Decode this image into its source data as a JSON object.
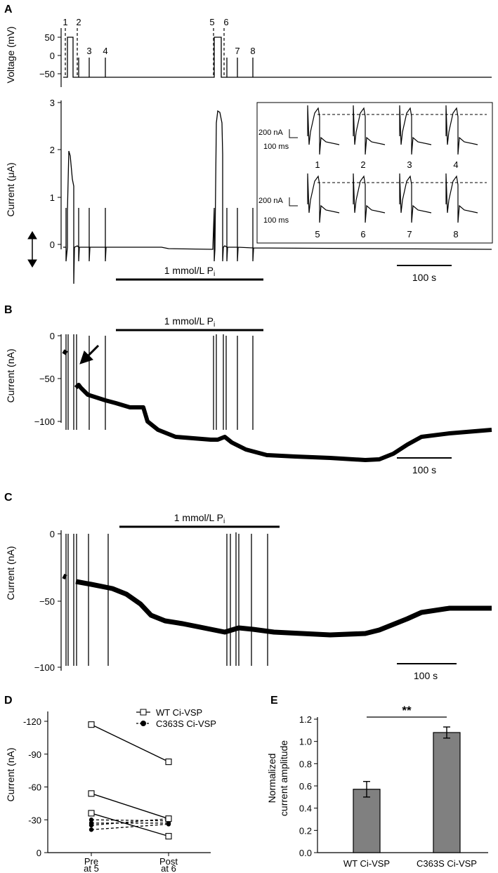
{
  "panels": {
    "A": {
      "label": "A",
      "voltage_ylabel": "Voltage (mV)",
      "voltage_ticks": [
        "50",
        "0",
        "−50"
      ],
      "current_ylabel": "Current (μA)",
      "current_ticks": [
        "3",
        "2",
        "1",
        "0"
      ],
      "step_numbers": [
        "1",
        "2",
        "3",
        "4",
        "5",
        "6",
        "7",
        "8"
      ],
      "treatment_label": "1 mmol/L P",
      "treatment_sub": "i",
      "scale_label": "100 s",
      "inset": {
        "scale_current": "200 nA",
        "scale_time": "100 ms",
        "trace_labels": [
          "1",
          "2",
          "3",
          "4",
          "5",
          "6",
          "7",
          "8"
        ]
      }
    },
    "B": {
      "label": "B",
      "ylabel": "Current (nA)",
      "ticks": [
        "0",
        "−50",
        "−100"
      ],
      "treatment_label": "1 mmol/L P",
      "treatment_sub": "i",
      "scale_label": "100 s"
    },
    "C": {
      "label": "C",
      "ylabel": "Current (nA)",
      "ticks": [
        "0",
        "−50",
        "−100"
      ],
      "treatment_label": "1 mmol/L P",
      "treatment_sub": "i",
      "scale_label": "100 s"
    },
    "D": {
      "label": "D",
      "ylabel": "Current (nA)",
      "yticks": [
        "-120",
        "-90",
        "-60",
        "-30",
        "0"
      ],
      "x_labels": [
        [
          "Pre",
          "at 5"
        ],
        [
          "Post",
          "at 6"
        ]
      ],
      "legend": [
        "WT Ci-VSP",
        "C363S Ci-VSP"
      ]
    },
    "E": {
      "label": "E",
      "ylabel_line1": "Normalized",
      "ylabel_line2": "current amplitude",
      "yticks": [
        "0.0",
        "0.2",
        "0.4",
        "0.6",
        "0.8",
        "1.0",
        "1.2"
      ],
      "significance": "**"
    }
  },
  "chart_data": [
    {
      "type": "line",
      "panel": "D",
      "ylabel": "Current (nA)",
      "categories": [
        "Pre at 5",
        "Post at 6"
      ],
      "ylim": [
        0,
        -120
      ],
      "series": [
        {
          "name": "WT Ci-VSP",
          "pairs": [
            [
              -117,
              -83
            ],
            [
              -54,
              -31
            ],
            [
              -36,
              -15
            ]
          ]
        },
        {
          "name": "C363S Ci-VSP",
          "pairs": [
            [
              -30,
              -29
            ],
            [
              -27,
              -27
            ],
            [
              -25,
              -31
            ],
            [
              -21,
              -26
            ]
          ]
        }
      ]
    },
    {
      "type": "bar",
      "panel": "E",
      "ylabel": "Normalized current amplitude",
      "categories": [
        "WT Ci-VSP",
        "C363S Ci-VSP"
      ],
      "values": [
        0.57,
        1.08
      ],
      "errors": [
        0.07,
        0.05
      ],
      "ylim": [
        0,
        1.2
      ],
      "colors": [
        "#808080",
        "#808080"
      ]
    }
  ]
}
